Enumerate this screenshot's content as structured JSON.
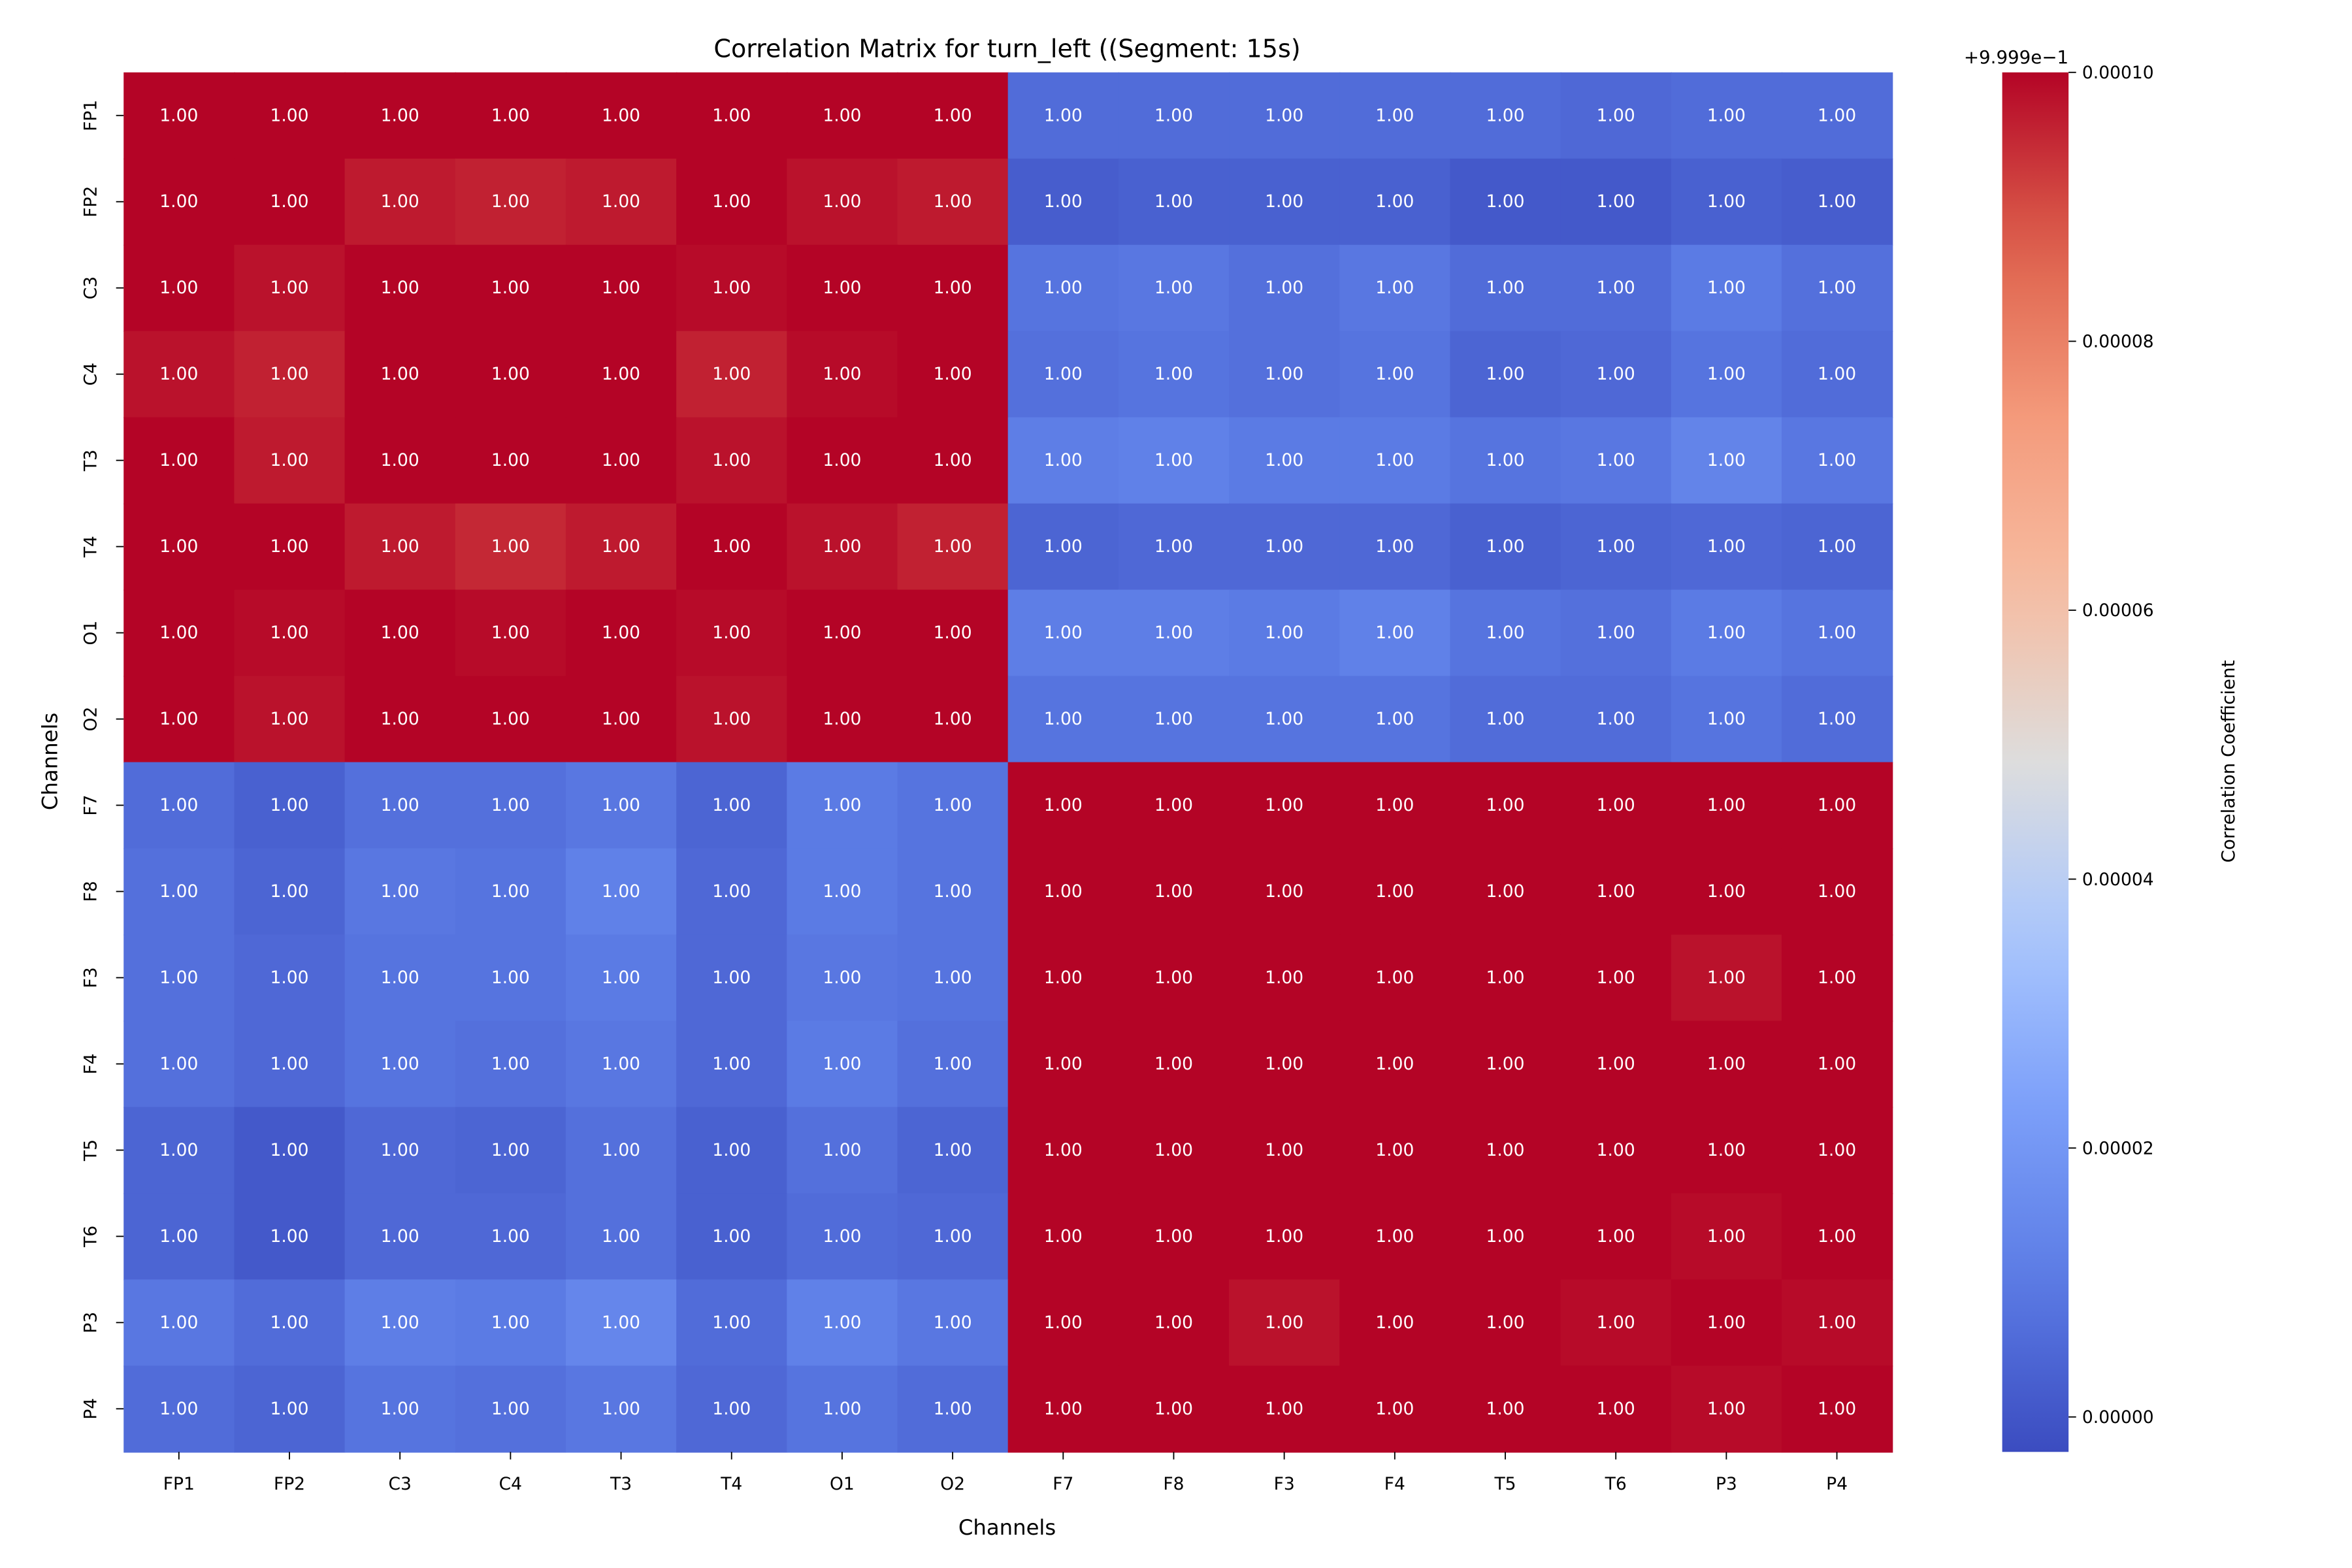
{
  "chart_data": {
    "type": "heatmap",
    "title": "Correlation Matrix for turn_left ((Segment: 15s)",
    "xlabel": "Channels",
    "ylabel": "Channels",
    "x_categories": [
      "FP1",
      "FP2",
      "C3",
      "C4",
      "T3",
      "T4",
      "O1",
      "O2",
      "F7",
      "F8",
      "F3",
      "F4",
      "T5",
      "T6",
      "P3",
      "P4"
    ],
    "y_categories": [
      "FP1",
      "FP2",
      "C3",
      "C4",
      "T3",
      "T4",
      "O1",
      "O2",
      "F7",
      "F8",
      "F3",
      "F4",
      "T5",
      "T6",
      "P3",
      "P4"
    ],
    "annotation_format": "0.00",
    "colormap": "coolwarm",
    "colorbar": {
      "label": "Correlation Coefficient",
      "offset_text": "+9.999e−1",
      "range": [
        0.9998974,
        1.0
      ],
      "ticks": [
        0.0,
        2e-05,
        4e-05,
        6e-05,
        8e-05,
        0.0001
      ],
      "tick_labels": [
        "0.00000",
        "0.00002",
        "0.00004",
        "0.00006",
        "0.00008",
        "0.00010"
      ]
    },
    "values": [
      [
        1.0,
        1.0,
        1.0,
        1.0,
        1.0,
        1.0,
        1.0,
        1.0,
        0.999906,
        0.999906,
        0.999906,
        0.999906,
        0.999906,
        0.999905,
        0.999906,
        0.999906
      ],
      [
        1.0,
        1.0,
        0.999997,
        0.999996,
        0.999997,
        1.0,
        0.999998,
        0.999997,
        0.999902,
        0.999903,
        0.999903,
        0.999903,
        0.999901,
        0.999901,
        0.999903,
        0.999902
      ],
      [
        1.0,
        0.999998,
        1.0,
        1.0,
        1.0,
        0.999999,
        1.0,
        1.0,
        0.999908,
        0.999909,
        0.999907,
        0.999909,
        0.999906,
        0.999906,
        0.99991,
        0.999907
      ],
      [
        0.999998,
        0.999996,
        1.0,
        1.0,
        1.0,
        0.999996,
        0.999999,
        1.0,
        0.999907,
        0.999908,
        0.999907,
        0.999908,
        0.999904,
        0.999905,
        0.999908,
        0.999906
      ],
      [
        1.0,
        0.999997,
        1.0,
        1.0,
        1.0,
        0.999998,
        1.0,
        1.0,
        0.999911,
        0.999912,
        0.99991,
        0.99991,
        0.999908,
        0.999909,
        0.999913,
        0.999909
      ],
      [
        1.0,
        1.0,
        0.999997,
        0.999995,
        0.999997,
        1.0,
        0.999998,
        0.999996,
        0.999904,
        0.999905,
        0.999905,
        0.999905,
        0.999903,
        0.999904,
        0.999905,
        0.999904
      ],
      [
        1.0,
        0.999999,
        1.0,
        0.999999,
        1.0,
        0.999999,
        1.0,
        1.0,
        0.999911,
        0.999911,
        0.99991,
        0.999912,
        0.999908,
        0.999907,
        0.99991,
        0.999908
      ],
      [
        1.0,
        0.999998,
        1.0,
        1.0,
        1.0,
        0.999998,
        1.0,
        1.0,
        0.999908,
        0.999908,
        0.999908,
        0.999908,
        0.999906,
        0.999906,
        0.999908,
        0.999906
      ],
      [
        0.999906,
        0.999903,
        0.999907,
        0.999907,
        0.999909,
        0.999904,
        0.99991,
        0.999908,
        1.0,
        1.0,
        1.0,
        1.0,
        1.0,
        1.0,
        1.0,
        1.0
      ],
      [
        0.999907,
        0.999904,
        0.999909,
        0.999908,
        0.999912,
        0.999905,
        0.99991,
        0.999908,
        1.0,
        1.0,
        1.0,
        1.0,
        1.0,
        1.0,
        1.0,
        1.0
      ],
      [
        0.999907,
        0.999905,
        0.999908,
        0.999908,
        0.99991,
        0.999905,
        0.999909,
        0.999908,
        1.0,
        1.0,
        1.0,
        1.0,
        1.0,
        1.0,
        0.999998,
        1.0
      ],
      [
        0.999907,
        0.999905,
        0.999908,
        0.999907,
        0.999909,
        0.999905,
        0.99991,
        0.999907,
        1.0,
        1.0,
        1.0,
        1.0,
        1.0,
        1.0,
        1.0,
        1.0
      ],
      [
        0.999904,
        0.999901,
        0.999905,
        0.999904,
        0.999907,
        0.999903,
        0.999907,
        0.999904,
        1.0,
        1.0,
        1.0,
        1.0,
        1.0,
        1.0,
        1.0,
        1.0
      ],
      [
        0.999904,
        0.999901,
        0.999905,
        0.999905,
        0.999907,
        0.999903,
        0.999906,
        0.999905,
        1.0,
        1.0,
        1.0,
        1.0,
        1.0,
        1.0,
        0.999999,
        1.0
      ],
      [
        0.999909,
        0.999906,
        0.999911,
        0.99991,
        0.999914,
        0.999906,
        0.999912,
        0.999909,
        1.0,
        1.0,
        0.999998,
        1.0,
        1.0,
        0.999999,
        1.0,
        0.999999
      ],
      [
        0.999906,
        0.999904,
        0.999908,
        0.999907,
        0.999909,
        0.999905,
        0.999908,
        0.999906,
        1.0,
        1.0,
        1.0,
        1.0,
        1.0,
        1.0,
        0.999999,
        1.0
      ]
    ]
  }
}
